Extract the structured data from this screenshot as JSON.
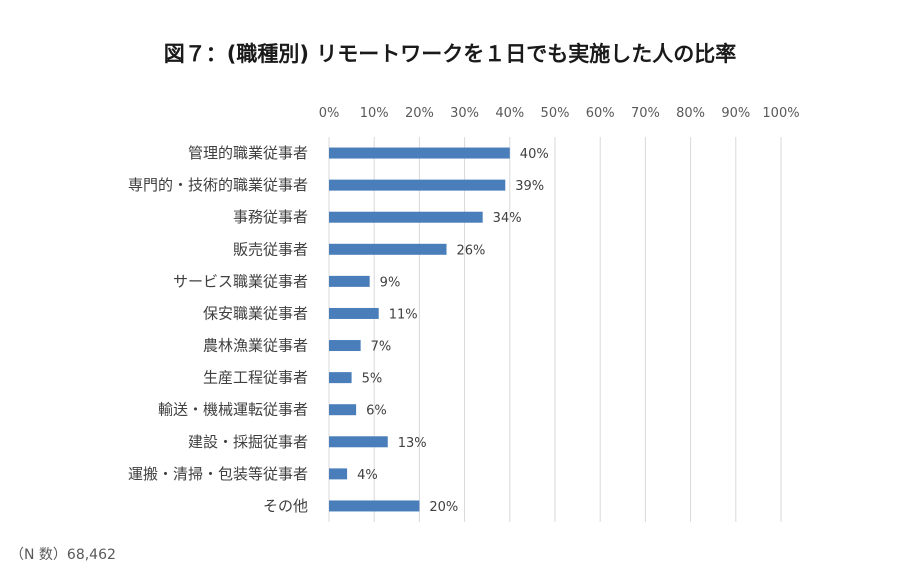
{
  "colors": {
    "bar": "#4a7ebb",
    "grid": "#d9d9d9",
    "text": "#404040"
  },
  "chart_data": {
    "type": "bar",
    "orientation": "horizontal",
    "title": "図７：(職種別) リモートワークを１日でも実施した人の比率",
    "xlim": [
      0,
      100
    ],
    "x_ticks": [
      "0%",
      "10%",
      "20%",
      "30%",
      "40%",
      "50%",
      "60%",
      "70%",
      "80%",
      "90%",
      "100%"
    ],
    "x_axis_position": "top",
    "grid": true,
    "legend": "none",
    "categories": [
      "管理的職業従事者",
      "専門的・技術的職業従事者",
      "事務従事者",
      "販売従事者",
      "サービス職業従事者",
      "保安職業従事者",
      "農林漁業従事者",
      "生産工程従事者",
      "輸送・機械運転従事者",
      "建設・採掘従事者",
      "運搬・清掃・包装等従事者",
      "その他"
    ],
    "values": [
      40,
      39,
      34,
      26,
      9,
      11,
      7,
      5,
      6,
      13,
      4,
      20
    ],
    "data_labels": [
      "40%",
      "39%",
      "34%",
      "26%",
      "9%",
      "11%",
      "7%",
      "5%",
      "6%",
      "13%",
      "4%",
      "20%"
    ]
  },
  "note": "（N 数）68,462"
}
